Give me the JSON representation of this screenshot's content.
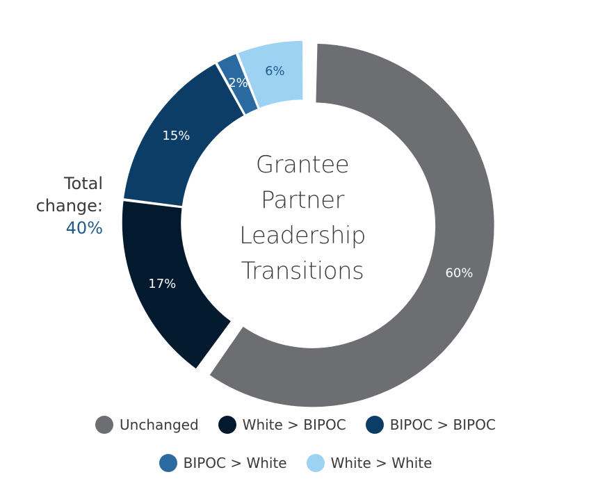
{
  "chart_data": {
    "type": "pie",
    "variant": "donut",
    "title": "Grantee Partner Leadership Transitions",
    "title_lines": [
      "Grantee",
      "Partner",
      "Leadership",
      "Transitions"
    ],
    "slices": [
      {
        "name": "Unchanged",
        "value": 60,
        "label": "60%",
        "color": "#6d6e71",
        "label_color": "#ffffff"
      },
      {
        "name": "White > BIPOC",
        "value": 17,
        "label": "17%",
        "color": "#031a2e",
        "label_color": "#ffffff"
      },
      {
        "name": "BIPOC > BIPOC",
        "value": 15,
        "label": "15%",
        "color": "#0b3d66",
        "label_color": "#ffffff"
      },
      {
        "name": "BIPOC > White",
        "value": 2,
        "label": "2%",
        "color": "#2a6aa1",
        "label_color": "#ffffff"
      },
      {
        "name": "White > White",
        "value": 6,
        "label": "6%",
        "color": "#9dd2f3",
        "label_color": "#1f5a8e"
      }
    ],
    "exploded_slice": "Unchanged",
    "annotation": {
      "lines": [
        "Total",
        "change:"
      ],
      "value": "40%",
      "value_color": "#1f5a8e"
    },
    "legend": {
      "placement": "bottom",
      "rows": [
        [
          "Unchanged",
          "White > BIPOC",
          "BIPOC > BIPOC"
        ],
        [
          "BIPOC > White",
          "White > White"
        ]
      ]
    }
  }
}
